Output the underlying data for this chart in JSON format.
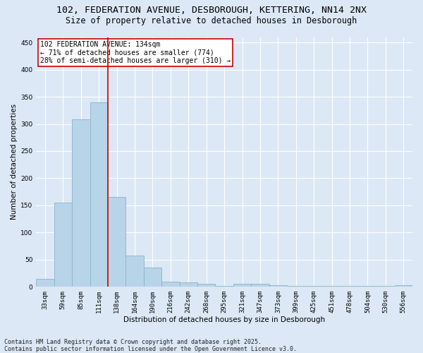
{
  "title_line1": "102, FEDERATION AVENUE, DESBOROUGH, KETTERING, NN14 2NX",
  "title_line2": "Size of property relative to detached houses in Desborough",
  "xlabel": "Distribution of detached houses by size in Desborough",
  "ylabel": "Number of detached properties",
  "categories": [
    "33sqm",
    "59sqm",
    "85sqm",
    "111sqm",
    "138sqm",
    "164sqm",
    "190sqm",
    "216sqm",
    "242sqm",
    "268sqm",
    "295sqm",
    "321sqm",
    "347sqm",
    "373sqm",
    "399sqm",
    "425sqm",
    "451sqm",
    "478sqm",
    "504sqm",
    "530sqm",
    "556sqm"
  ],
  "values": [
    15,
    155,
    308,
    340,
    165,
    57,
    35,
    10,
    8,
    5,
    2,
    5,
    5,
    3,
    2,
    1,
    1,
    1,
    1,
    1,
    3
  ],
  "bar_color": "#b8d4e8",
  "bar_edge_color": "#8ab4cc",
  "vline_color": "#cc0000",
  "annotation_text": "102 FEDERATION AVENUE: 134sqm\n← 71% of detached houses are smaller (774)\n28% of semi-detached houses are larger (310) →",
  "annotation_box_color": "#ffffff",
  "annotation_box_edge": "#cc0000",
  "ylim": [
    0,
    460
  ],
  "yticks": [
    0,
    50,
    100,
    150,
    200,
    250,
    300,
    350,
    400,
    450
  ],
  "background_color": "#dce8f5",
  "grid_color": "#ffffff",
  "footer_line1": "Contains HM Land Registry data © Crown copyright and database right 2025.",
  "footer_line2": "Contains public sector information licensed under the Open Government Licence v3.0.",
  "title_fontsize": 9.5,
  "subtitle_fontsize": 8.5,
  "axis_label_fontsize": 7.5,
  "tick_fontsize": 6.5,
  "annotation_fontsize": 7,
  "footer_fontsize": 6
}
